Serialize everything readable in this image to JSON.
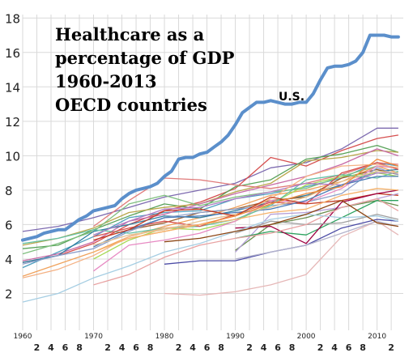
{
  "chart_data": {
    "type": "line",
    "title_lines": [
      "Healthcare as a",
      "percentage of GDP",
      "1960-2013",
      "OECD countries"
    ],
    "xlabel": "",
    "ylabel": "",
    "xlim": [
      1960,
      2013.7
    ],
    "ylim": [
      0.8,
      18.2
    ],
    "grid": true,
    "y_ticks": [
      2,
      4,
      6,
      8,
      10,
      12,
      14,
      16,
      18
    ],
    "x_major_ticks": [
      {
        "year": 1960,
        "label": "1960"
      },
      {
        "year": 1970,
        "label": "1970"
      },
      {
        "year": 1980,
        "label": "1980"
      },
      {
        "year": 1990,
        "label": "1990"
      },
      {
        "year": 2000,
        "label": "2000"
      },
      {
        "year": 2010,
        "label": "2010"
      }
    ],
    "x_minor_ticks": [
      {
        "year": 1962,
        "label": "2"
      },
      {
        "year": 1964,
        "label": "4"
      },
      {
        "year": 1966,
        "label": "6"
      },
      {
        "year": 1968,
        "label": "8"
      },
      {
        "year": 1972,
        "label": "2"
      },
      {
        "year": 1974,
        "label": "4"
      },
      {
        "year": 1976,
        "label": "6"
      },
      {
        "year": 1978,
        "label": "8"
      },
      {
        "year": 1982,
        "label": "2"
      },
      {
        "year": 1984,
        "label": "4"
      },
      {
        "year": 1986,
        "label": "6"
      },
      {
        "year": 1988,
        "label": "8"
      },
      {
        "year": 1992,
        "label": "2"
      },
      {
        "year": 1994,
        "label": "4"
      },
      {
        "year": 1996,
        "label": "6"
      },
      {
        "year": 1998,
        "label": "8"
      },
      {
        "year": 2002,
        "label": "2"
      },
      {
        "year": 2004,
        "label": "4"
      },
      {
        "year": 2006,
        "label": "6"
      },
      {
        "year": 2008,
        "label": "8"
      },
      {
        "year": 2012,
        "label": "2"
      }
    ],
    "highlight": {
      "label": "U.S.",
      "color": "#5b8fcb",
      "x": [
        1960,
        1961,
        1962,
        1963,
        1964,
        1965,
        1966,
        1967,
        1968,
        1969,
        1970,
        1971,
        1972,
        1973,
        1974,
        1975,
        1976,
        1977,
        1978,
        1979,
        1980,
        1981,
        1982,
        1983,
        1984,
        1985,
        1986,
        1987,
        1988,
        1989,
        1990,
        1991,
        1992,
        1993,
        1994,
        1995,
        1996,
        1997,
        1998,
        1999,
        2000,
        2001,
        2002,
        2003,
        2004,
        2005,
        2006,
        2007,
        2008,
        2009,
        2010,
        2011,
        2012,
        2013
      ],
      "y": [
        5.1,
        5.2,
        5.3,
        5.5,
        5.6,
        5.7,
        5.7,
        6.0,
        6.3,
        6.5,
        6.8,
        6.9,
        7.0,
        7.1,
        7.5,
        7.8,
        8.0,
        8.1,
        8.2,
        8.4,
        8.8,
        9.1,
        9.8,
        9.9,
        9.9,
        10.1,
        10.2,
        10.5,
        10.8,
        11.2,
        11.8,
        12.5,
        12.8,
        13.1,
        13.1,
        13.2,
        13.1,
        13.0,
        13.0,
        13.1,
        13.1,
        13.6,
        14.4,
        15.1,
        15.2,
        15.2,
        15.3,
        15.5,
        16.0,
        17.0,
        17.0,
        17.0,
        16.9,
        16.9
      ]
    },
    "series": [
      {
        "color": "#7e6bb0",
        "x": [
          1960,
          1965,
          1970,
          1975,
          1980,
          1985,
          1990,
          1995,
          2000,
          2005,
          2010,
          2013
        ],
        "y": [
          5.6,
          5.9,
          6.4,
          7.0,
          7.6,
          8.0,
          8.4,
          9.3,
          9.6,
          10.4,
          11.6,
          11.6
        ]
      },
      {
        "color": "#d64f4f",
        "x": [
          1960,
          1965,
          1970,
          1975,
          1980,
          1985,
          1990,
          1995,
          2000,
          2005,
          2010,
          2013
        ],
        "y": [
          3.8,
          4.2,
          4.9,
          6.0,
          6.8,
          7.3,
          8.1,
          9.9,
          9.4,
          10.3,
          11.0,
          11.2
        ]
      },
      {
        "color": "#f0a25c",
        "x": [
          1960,
          1965,
          1970,
          1975,
          1980,
          1985,
          1990,
          1995,
          2000,
          2005,
          2010,
          2013
        ],
        "y": [
          3.0,
          3.7,
          4.4,
          5.3,
          5.9,
          6.4,
          7.0,
          7.7,
          8.0,
          8.5,
          9.4,
          9.0
        ]
      },
      {
        "color": "#5aa35a",
        "x": [
          1960,
          1965,
          1970,
          1975,
          1980,
          1985,
          1990,
          1995,
          2000,
          2005,
          2010,
          2013
        ],
        "y": [
          4.6,
          4.8,
          5.7,
          6.5,
          7.2,
          6.9,
          8.2,
          8.6,
          9.8,
          10.1,
          10.6,
          10.2
        ]
      },
      {
        "color": "#b9a64a",
        "x": [
          1960,
          1965,
          1970,
          1975,
          1980,
          1985,
          1990,
          1995,
          2000,
          2005,
          2010,
          2013
        ],
        "y": [
          4.8,
          5.2,
          5.8,
          6.7,
          7.0,
          7.2,
          7.9,
          8.4,
          9.7,
          9.9,
          10.3,
          10.2
        ]
      },
      {
        "color": "#4f9fbf",
        "x": [
          1960,
          1965,
          1970,
          1975,
          1980,
          1985,
          1990,
          1995,
          2000,
          2005,
          2010,
          2013
        ],
        "y": [
          3.5,
          4.4,
          5.3,
          6.4,
          6.7,
          6.8,
          7.5,
          7.8,
          8.2,
          8.7,
          9.6,
          9.4
        ]
      },
      {
        "color": "#c76aa6",
        "x": [
          1960,
          1965,
          1970,
          1975,
          1980,
          1985,
          1990,
          1995,
          2000,
          2005,
          2010,
          2013
        ],
        "y": [
          3.9,
          4.3,
          5.0,
          6.2,
          6.6,
          7.2,
          7.8,
          8.3,
          8.8,
          9.5,
          10.4,
          10.0
        ]
      },
      {
        "color": "#7fbf7f",
        "x": [
          1960,
          1965,
          1970,
          1975,
          1980,
          1985,
          1990,
          1995,
          2000,
          2005,
          2010,
          2013
        ],
        "y": [
          4.3,
          4.9,
          5.6,
          7.2,
          7.7,
          7.1,
          7.6,
          7.9,
          8.1,
          8.8,
          9.4,
          9.3
        ]
      },
      {
        "color": "#e07a7a",
        "x": [
          1970,
          1975,
          1980,
          1985,
          1990,
          1995,
          2000,
          2005,
          2010,
          2013
        ],
        "y": [
          5.9,
          7.4,
          8.7,
          8.6,
          8.3,
          8.1,
          8.4,
          8.9,
          9.6,
          9.5
        ]
      },
      {
        "color": "#2f7fa0",
        "x": [
          1960,
          1965,
          1970,
          1975,
          1980,
          1985,
          1990,
          1995,
          2000,
          2005,
          2010,
          2013
        ],
        "y": [
          3.8,
          4.2,
          5.6,
          6.0,
          6.5,
          6.4,
          6.8,
          7.3,
          7.7,
          8.3,
          9.1,
          9.2
        ]
      },
      {
        "color": "#9c5f2e",
        "x": [
          1975,
          1980,
          1985,
          1990,
          1995,
          2000,
          2005,
          2010,
          2013
        ],
        "y": [
          5.7,
          6.1,
          6.7,
          6.9,
          7.4,
          7.6,
          8.7,
          9.2,
          8.9
        ]
      },
      {
        "color": "#8da0cb",
        "x": [
          1960,
          1965,
          1970,
          1975,
          1980,
          1985,
          1990,
          1995,
          2000,
          2005,
          2010,
          2013
        ],
        "y": [
          3.7,
          4.2,
          4.6,
          5.6,
          6.4,
          6.7,
          6.9,
          7.1,
          7.3,
          7.8,
          9.3,
          8.9
        ]
      },
      {
        "color": "#a6d854",
        "x": [
          1970,
          1975,
          1980,
          1985,
          1990,
          1995,
          2000,
          2005,
          2010,
          2013
        ],
        "y": [
          4.0,
          5.1,
          5.8,
          5.7,
          6.2,
          7.2,
          8.3,
          8.8,
          9.0,
          8.8
        ]
      },
      {
        "color": "#e78ac3",
        "x": [
          1970,
          1975,
          1980,
          1985,
          1990,
          1995,
          2000,
          2005,
          2010,
          2013
        ],
        "y": [
          3.3,
          4.8,
          5.1,
          5.5,
          6.2,
          7.4,
          7.3,
          8.1,
          9.4,
          9.3
        ]
      },
      {
        "color": "#66c2a5",
        "x": [
          1960,
          1965,
          1970,
          1975,
          1980,
          1985,
          1990,
          1995,
          2000,
          2005,
          2010,
          2013
        ],
        "y": [
          4.9,
          5.2,
          5.7,
          5.5,
          5.8,
          5.9,
          6.3,
          7.1,
          8.6,
          8.9,
          8.7,
          9.1
        ]
      },
      {
        "color": "#d9534f",
        "x": [
          1970,
          1975,
          1980,
          1985,
          1990,
          1995,
          2000,
          2005,
          2010,
          2013
        ],
        "y": [
          5.3,
          5.8,
          6.2,
          5.9,
          6.6,
          7.3,
          7.2,
          9.0,
          9.6,
          9.2
        ]
      },
      {
        "color": "#b07cc6",
        "x": [
          1970,
          1975,
          1980,
          1985,
          1990,
          1995,
          2000,
          2005,
          2010,
          2013
        ],
        "y": [
          5.4,
          6.2,
          6.9,
          7.0,
          7.5,
          7.9,
          8.4,
          8.3,
          9.0,
          9.0
        ]
      },
      {
        "color": "#f4b183",
        "x": [
          1960,
          1965,
          1970,
          1975,
          1980,
          1985,
          1990,
          1995,
          2000,
          2005,
          2010,
          2013
        ],
        "y": [
          2.9,
          3.4,
          4.2,
          5.3,
          5.8,
          6.0,
          6.5,
          7.5,
          8.8,
          9.4,
          9.5,
          9.3
        ]
      },
      {
        "color": "#4a7bb7",
        "x": [
          1970,
          1975,
          1980,
          1985,
          1990,
          1995,
          2000,
          2005,
          2010,
          2013
        ],
        "y": [
          4.7,
          5.7,
          6.4,
          6.5,
          6.7,
          6.9,
          7.4,
          8.3,
          8.8,
          8.8
        ]
      },
      {
        "color": "#e5c494",
        "x": [
          1970,
          1975,
          1980,
          1985,
          1990,
          1995,
          2000,
          2005,
          2010,
          2013
        ],
        "y": [
          4.8,
          5.4,
          5.7,
          6.2,
          6.6,
          7.0,
          7.6,
          8.5,
          9.1,
          9.0
        ]
      },
      {
        "color": "#c23b22",
        "x": [
          1970,
          1975,
          1980,
          1985,
          1990,
          1995,
          2000,
          2005,
          2010,
          2013
        ],
        "y": [
          5.1,
          5.7,
          6.8,
          6.9,
          6.5,
          7.6,
          7.2,
          7.4,
          7.8,
          7.7
        ]
      },
      {
        "color": "#6a8e4e",
        "x": [
          1990,
          1995,
          2000,
          2005,
          2010,
          2013
        ],
        "y": [
          4.5,
          6.0,
          6.4,
          7.0,
          7.4,
          7.1
        ]
      },
      {
        "color": "#b5a0d8",
        "x": [
          1990,
          1995,
          2000,
          2005,
          2010,
          2013
        ],
        "y": [
          4.4,
          6.6,
          6.7,
          7.0,
          7.5,
          7.8
        ]
      },
      {
        "color": "#f08a3c",
        "x": [
          1975,
          1980,
          1985,
          1990,
          1995,
          2000,
          2005,
          2010,
          2013
        ],
        "y": [
          5.2,
          5.6,
          6.0,
          6.5,
          7.2,
          7.8,
          8.2,
          9.8,
          9.4
        ]
      },
      {
        "color": "#2ca25f",
        "x": [
          1990,
          1995,
          2000,
          2005,
          2010,
          2013
        ],
        "y": [
          5.2,
          5.6,
          5.4,
          6.4,
          7.4,
          7.4
        ]
      },
      {
        "color": "#9e0142",
        "x": [
          1990,
          1995,
          2000,
          2005,
          2010,
          2013
        ],
        "y": [
          5.8,
          5.9,
          4.9,
          7.3,
          7.8,
          8.0
        ]
      },
      {
        "color": "#a0a0a0",
        "x": [
          1990,
          1995,
          2000,
          2005,
          2010,
          2013
        ],
        "y": [
          5.5,
          6.2,
          6.0,
          6.1,
          6.6,
          6.3
        ]
      },
      {
        "color": "#f6b26b",
        "x": [
          1970,
          1975,
          1980,
          1985,
          1990,
          1995,
          2000,
          2005,
          2010,
          2013
        ],
        "y": [
          4.4,
          5.2,
          5.6,
          6.0,
          6.3,
          6.7,
          6.9,
          7.7,
          8.1,
          8.0
        ]
      },
      {
        "color": "#4c4ca6",
        "x": [
          1980,
          1985,
          1990,
          1995,
          2000,
          2005,
          2010,
          2013
        ],
        "y": [
          3.7,
          3.9,
          3.9,
          4.4,
          4.8,
          5.8,
          6.3,
          6.2
        ]
      },
      {
        "color": "#e8a2a2",
        "x": [
          1970,
          1975,
          1980,
          1985,
          1990,
          1995,
          2000,
          2005,
          2010,
          2013
        ],
        "y": [
          2.5,
          3.1,
          4.1,
          4.8,
          5.2,
          5.5,
          6.0,
          7.0,
          7.5,
          6.8
        ]
      },
      {
        "color": "#a6cee3",
        "x": [
          1960,
          1965,
          1970,
          1975,
          1980,
          1985,
          1990,
          1995,
          2000,
          2005,
          2010,
          2013
        ],
        "y": [
          1.5,
          2.0,
          2.9,
          3.6,
          4.4,
          4.9,
          5.6,
          6.3,
          6.6,
          6.4,
          6.5,
          6.2
        ]
      },
      {
        "color": "#e6b8b8",
        "x": [
          1980,
          1985,
          1990,
          1995,
          2000,
          2005,
          2010,
          2013
        ],
        "y": [
          2.0,
          1.9,
          2.1,
          2.5,
          3.1,
          5.3,
          6.2,
          5.4
        ]
      },
      {
        "color": "#b3b3cc",
        "x": [
          1990,
          1995,
          2000,
          2005,
          2010,
          2013
        ],
        "y": [
          4.0,
          4.4,
          4.8,
          5.5,
          6.2,
          5.9
        ]
      },
      {
        "color": "#8b4513",
        "x": [
          1980,
          1985,
          1990,
          1995,
          2000,
          2005,
          2010,
          2013
        ],
        "y": [
          5.0,
          5.2,
          5.6,
          6.0,
          6.6,
          7.4,
          6.1,
          5.9
        ]
      }
    ]
  }
}
